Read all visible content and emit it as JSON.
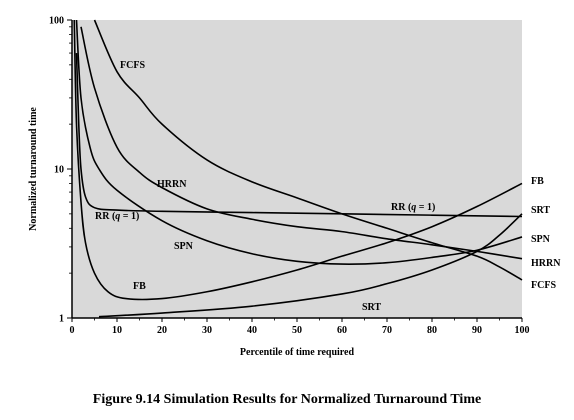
{
  "figure": {
    "caption": "Figure 9.14  Simulation Results for Normalized Turnaround Time"
  },
  "chart_data": {
    "type": "line",
    "title": "",
    "xlabel": "Percentile of time required",
    "ylabel": "Normalized turnaround time",
    "xlim": [
      0,
      100
    ],
    "ylim": [
      1,
      100
    ],
    "yscale": "log",
    "xticks": [
      0,
      10,
      20,
      30,
      40,
      50,
      60,
      70,
      80,
      90,
      100
    ],
    "xtick_labels": [
      "0",
      "10",
      "20",
      "30",
      "40",
      "50",
      "60",
      "70",
      "80",
      "90",
      "100"
    ],
    "yticks": [
      1,
      10,
      100
    ],
    "ytick_labels": [
      "1",
      "10",
      "100"
    ],
    "grid": false,
    "background_color": "#d9d9d9",
    "line_color": "#000000",
    "series": [
      {
        "name": "FCFS",
        "label": "FCFS",
        "x": [
          5,
          10,
          15,
          20,
          30,
          40,
          50,
          60,
          70,
          80,
          90,
          95,
          100
        ],
        "y": [
          100,
          45,
          30,
          20,
          11.5,
          8.2,
          6.4,
          5.0,
          4.0,
          3.2,
          2.6,
          2.2,
          1.8
        ]
      },
      {
        "name": "HRRN",
        "label": "HRRN",
        "x": [
          2,
          5,
          10,
          15,
          20,
          30,
          40,
          50,
          60,
          70,
          80,
          90,
          100
        ],
        "y": [
          90,
          35,
          14,
          9.5,
          7.5,
          5.4,
          4.6,
          4.1,
          3.8,
          3.4,
          3.1,
          2.8,
          2.5
        ]
      },
      {
        "name": "RR (q = 1)",
        "label": "RR (q = 1)",
        "x": [
          1,
          1.5,
          2,
          3,
          5,
          10,
          20,
          40,
          60,
          80,
          100
        ],
        "y": [
          60,
          20,
          10,
          6.5,
          5.5,
          5.3,
          5.2,
          5.1,
          5.0,
          4.9,
          4.8
        ]
      },
      {
        "name": "SPN",
        "label": "SPN",
        "x": [
          1,
          2,
          4,
          6,
          10,
          20,
          30,
          40,
          50,
          60,
          70,
          80,
          90,
          100
        ],
        "y": [
          100,
          30,
          14,
          10,
          7.2,
          4.5,
          3.3,
          2.7,
          2.4,
          2.3,
          2.35,
          2.55,
          2.85,
          3.5
        ]
      },
      {
        "name": "FB",
        "label": "FB",
        "x": [
          0.5,
          1,
          2,
          3,
          5,
          8,
          12,
          20,
          30,
          40,
          50,
          60,
          70,
          80,
          90,
          100
        ],
        "y": [
          100,
          20,
          6,
          3.2,
          2.0,
          1.5,
          1.35,
          1.35,
          1.5,
          1.75,
          2.1,
          2.6,
          3.2,
          4.1,
          5.6,
          8.0
        ]
      },
      {
        "name": "SRT",
        "label": "SRT",
        "x": [
          6,
          20,
          40,
          60,
          70,
          80,
          90,
          95,
          100
        ],
        "y": [
          1.02,
          1.08,
          1.2,
          1.45,
          1.7,
          2.1,
          2.8,
          3.6,
          5.0
        ]
      }
    ]
  }
}
